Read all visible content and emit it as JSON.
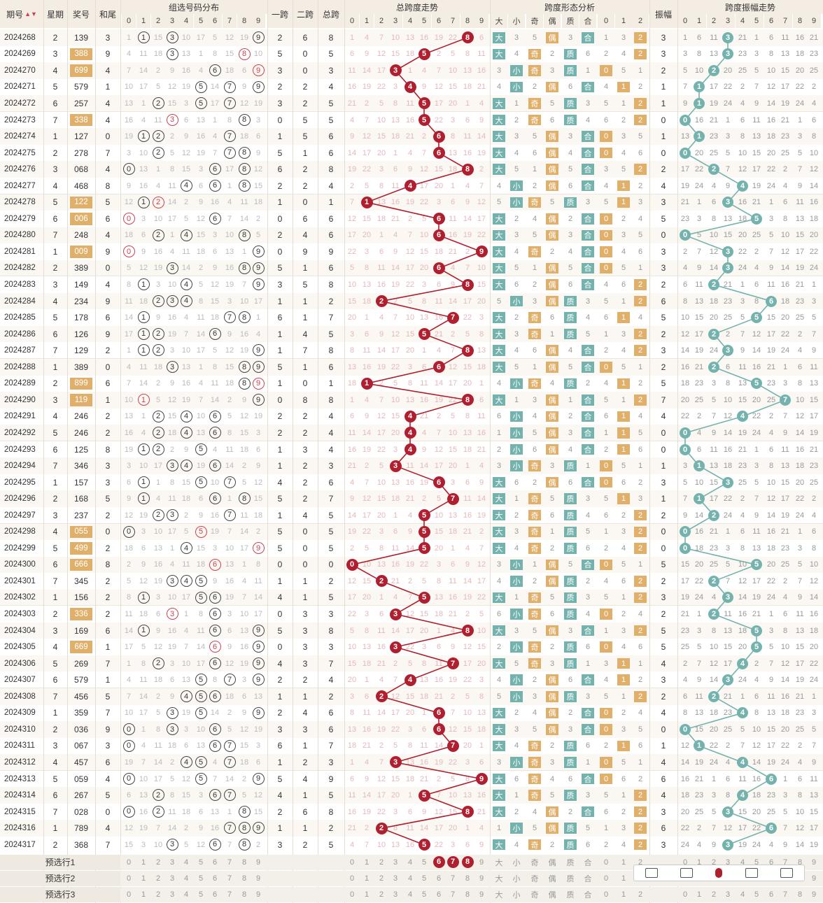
{
  "headers": {
    "period": "期号",
    "sort_icon": "sort-arrows",
    "week": "星期",
    "prize": "奖号",
    "hewei": "和尾",
    "group": "组选号码分布",
    "yikua": "一跨",
    "erkua": "二跨",
    "zongkua": "总跨",
    "kuadu_trend": "总跨度走势",
    "shape": "跨度形态分析",
    "amp": "振幅",
    "amp_trend": "跨度振幅走势"
  },
  "subheads": {
    "digits": [
      "0",
      "1",
      "2",
      "3",
      "4",
      "5",
      "6",
      "7",
      "8",
      "9"
    ],
    "shape_sub": [
      "大",
      "小",
      "奇",
      "偶",
      "质",
      "合",
      "0",
      "1",
      "2"
    ]
  },
  "colors": {
    "red": "#b01f2f",
    "teal": "#74b3ad",
    "gold": "#e0b06b",
    "header": "#f4ede3"
  },
  "rows": [
    {
      "p": "2024268",
      "w": "2",
      "n": "139",
      "hw": "3",
      "a": "2",
      "b": "6",
      "s": "8",
      "z": "3"
    },
    {
      "p": "2024269",
      "w": "3",
      "n": "388",
      "hw": "9",
      "a": "5",
      "b": "0",
      "s": "5",
      "z": "3"
    },
    {
      "p": "2024270",
      "w": "4",
      "n": "699",
      "hw": "4",
      "a": "3",
      "b": "0",
      "s": "3",
      "z": "2"
    },
    {
      "p": "2024271",
      "w": "5",
      "n": "579",
      "hw": "1",
      "a": "2",
      "b": "2",
      "s": "4",
      "z": "1"
    },
    {
      "p": "2024272",
      "w": "6",
      "n": "257",
      "hw": "4",
      "a": "3",
      "b": "2",
      "s": "5",
      "z": "1"
    },
    {
      "p": "2024273",
      "w": "7",
      "n": "338",
      "hw": "4",
      "a": "0",
      "b": "5",
      "s": "5",
      "z": "0"
    },
    {
      "p": "2024274",
      "w": "1",
      "n": "127",
      "hw": "0",
      "a": "1",
      "b": "5",
      "s": "6",
      "z": "1"
    },
    {
      "p": "2024275",
      "w": "2",
      "n": "278",
      "hw": "7",
      "a": "5",
      "b": "1",
      "s": "6",
      "z": "0"
    },
    {
      "p": "2024276",
      "w": "3",
      "n": "068",
      "hw": "4",
      "a": "6",
      "b": "2",
      "s": "8",
      "z": "2"
    },
    {
      "p": "2024277",
      "w": "4",
      "n": "468",
      "hw": "8",
      "a": "2",
      "b": "2",
      "s": "4",
      "z": "4"
    },
    {
      "p": "2024278",
      "w": "5",
      "n": "122",
      "hw": "5",
      "a": "1",
      "b": "0",
      "s": "1",
      "z": "3"
    },
    {
      "p": "2024279",
      "w": "6",
      "n": "006",
      "hw": "6",
      "a": "0",
      "b": "6",
      "s": "6",
      "z": "5"
    },
    {
      "p": "2024280",
      "w": "7",
      "n": "248",
      "hw": "4",
      "a": "2",
      "b": "4",
      "s": "6",
      "z": "0"
    },
    {
      "p": "2024281",
      "w": "1",
      "n": "009",
      "hw": "9",
      "a": "0",
      "b": "9",
      "s": "9",
      "z": "3"
    },
    {
      "p": "2024282",
      "w": "2",
      "n": "389",
      "hw": "0",
      "a": "5",
      "b": "1",
      "s": "6",
      "z": "3"
    },
    {
      "p": "2024283",
      "w": "3",
      "n": "149",
      "hw": "4",
      "a": "3",
      "b": "5",
      "s": "8",
      "z": "2"
    },
    {
      "p": "2024284",
      "w": "4",
      "n": "234",
      "hw": "9",
      "a": "1",
      "b": "1",
      "s": "2",
      "z": "6"
    },
    {
      "p": "2024285",
      "w": "5",
      "n": "178",
      "hw": "6",
      "a": "6",
      "b": "1",
      "s": "7",
      "z": "5"
    },
    {
      "p": "2024286",
      "w": "6",
      "n": "126",
      "hw": "9",
      "a": "1",
      "b": "4",
      "s": "5",
      "z": "2"
    },
    {
      "p": "2024287",
      "w": "7",
      "n": "129",
      "hw": "2",
      "a": "1",
      "b": "7",
      "s": "8",
      "z": "3"
    },
    {
      "p": "2024288",
      "w": "1",
      "n": "389",
      "hw": "0",
      "a": "5",
      "b": "1",
      "s": "6",
      "z": "2"
    },
    {
      "p": "2024289",
      "w": "2",
      "n": "899",
      "hw": "6",
      "a": "1",
      "b": "0",
      "s": "1",
      "z": "5"
    },
    {
      "p": "2024290",
      "w": "3",
      "n": "119",
      "hw": "1",
      "a": "0",
      "b": "8",
      "s": "8",
      "z": "7"
    },
    {
      "p": "2024291",
      "w": "4",
      "n": "246",
      "hw": "2",
      "a": "2",
      "b": "2",
      "s": "4",
      "z": "4"
    },
    {
      "p": "2024292",
      "w": "5",
      "n": "246",
      "hw": "2",
      "a": "2",
      "b": "2",
      "s": "4",
      "z": "0"
    },
    {
      "p": "2024293",
      "w": "6",
      "n": "125",
      "hw": "8",
      "a": "1",
      "b": "3",
      "s": "4",
      "z": "0"
    },
    {
      "p": "2024294",
      "w": "7",
      "n": "346",
      "hw": "3",
      "a": "1",
      "b": "2",
      "s": "3",
      "z": "1"
    },
    {
      "p": "2024295",
      "w": "1",
      "n": "157",
      "hw": "3",
      "a": "4",
      "b": "2",
      "s": "6",
      "z": "3"
    },
    {
      "p": "2024296",
      "w": "2",
      "n": "168",
      "hw": "5",
      "a": "5",
      "b": "2",
      "s": "7",
      "z": "1"
    },
    {
      "p": "2024297",
      "w": "3",
      "n": "237",
      "hw": "2",
      "a": "1",
      "b": "4",
      "s": "5",
      "z": "2"
    },
    {
      "p": "2024298",
      "w": "4",
      "n": "055",
      "hw": "0",
      "a": "5",
      "b": "0",
      "s": "5",
      "z": "0"
    },
    {
      "p": "2024299",
      "w": "5",
      "n": "499",
      "hw": "2",
      "a": "5",
      "b": "0",
      "s": "5",
      "z": "0"
    },
    {
      "p": "2024300",
      "w": "6",
      "n": "666",
      "hw": "8",
      "a": "0",
      "b": "0",
      "s": "0",
      "z": "5"
    },
    {
      "p": "2024301",
      "w": "7",
      "n": "345",
      "hw": "2",
      "a": "1",
      "b": "1",
      "s": "2",
      "z": "2"
    },
    {
      "p": "2024302",
      "w": "1",
      "n": "156",
      "hw": "2",
      "a": "4",
      "b": "1",
      "s": "5",
      "z": "3"
    },
    {
      "p": "2024303",
      "w": "2",
      "n": "336",
      "hw": "2",
      "a": "0",
      "b": "3",
      "s": "3",
      "z": "2"
    },
    {
      "p": "2024304",
      "w": "3",
      "n": "169",
      "hw": "6",
      "a": "5",
      "b": "3",
      "s": "8",
      "z": "5"
    },
    {
      "p": "2024305",
      "w": "4",
      "n": "669",
      "hw": "1",
      "a": "0",
      "b": "3",
      "s": "3",
      "z": "5"
    },
    {
      "p": "2024306",
      "w": "5",
      "n": "269",
      "hw": "7",
      "a": "4",
      "b": "3",
      "s": "7",
      "z": "4"
    },
    {
      "p": "2024307",
      "w": "6",
      "n": "579",
      "hw": "1",
      "a": "2",
      "b": "2",
      "s": "4",
      "z": "3"
    },
    {
      "p": "2024308",
      "w": "7",
      "n": "456",
      "hw": "5",
      "a": "1",
      "b": "1",
      "s": "2",
      "z": "2"
    },
    {
      "p": "2024309",
      "w": "1",
      "n": "359",
      "hw": "7",
      "a": "2",
      "b": "4",
      "s": "6",
      "z": "4"
    },
    {
      "p": "2024310",
      "w": "2",
      "n": "036",
      "hw": "9",
      "a": "3",
      "b": "3",
      "s": "6",
      "z": "0"
    },
    {
      "p": "2024311",
      "w": "3",
      "n": "067",
      "hw": "3",
      "a": "6",
      "b": "1",
      "s": "7",
      "z": "1"
    },
    {
      "p": "2024312",
      "w": "4",
      "n": "457",
      "hw": "6",
      "a": "1",
      "b": "2",
      "s": "3",
      "z": "4"
    },
    {
      "p": "2024313",
      "w": "5",
      "n": "059",
      "hw": "4",
      "a": "5",
      "b": "4",
      "s": "9",
      "z": "6"
    },
    {
      "p": "2024314",
      "w": "6",
      "n": "267",
      "hw": "5",
      "a": "4",
      "b": "1",
      "s": "5",
      "z": "4"
    },
    {
      "p": "2024315",
      "w": "7",
      "n": "028",
      "hw": "0",
      "a": "2",
      "b": "6",
      "s": "8",
      "z": "3"
    },
    {
      "p": "2024316",
      "w": "1",
      "n": "789",
      "hw": "4",
      "a": "1",
      "b": "1",
      "s": "2",
      "z": "6"
    },
    {
      "p": "2024317",
      "w": "2",
      "n": "368",
      "hw": "7",
      "a": "3",
      "b": "2",
      "s": "5",
      "z": "3"
    }
  ],
  "footer": {
    "labels": [
      "预选行1",
      "预选行2",
      "预选行3"
    ],
    "shape_labels": [
      "大",
      "小",
      "奇",
      "偶",
      "质",
      "合",
      "0",
      "1",
      "2"
    ],
    "selected_kuadu": [
      "6",
      "7",
      "8"
    ]
  }
}
